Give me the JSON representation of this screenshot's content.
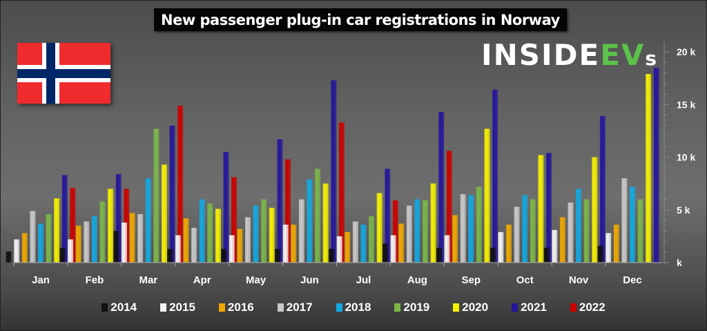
{
  "chart_data": {
    "type": "bar",
    "title": "New passenger plug-in car registrations in Norway",
    "xlabel": "",
    "ylabel": "",
    "ylim": [
      0,
      20000
    ],
    "yticks": [
      0,
      5000,
      10000,
      15000,
      20000
    ],
    "ytick_labels": [
      "k",
      "5 k",
      "10 k",
      "15 k",
      "20 k"
    ],
    "grid": false,
    "legend_position": "bottom",
    "categories": [
      "Jan",
      "Feb",
      "Mar",
      "Apr",
      "May",
      "Jun",
      "Jul",
      "Aug",
      "Sep",
      "Oct",
      "Nov",
      "Dec"
    ],
    "series": [
      {
        "name": "2014",
        "color": "#111111",
        "values": [
          1050,
          1400,
          3000,
          1300,
          1300,
          1300,
          1300,
          1800,
          1400,
          1400,
          1400,
          1600
        ]
      },
      {
        "name": "2015",
        "color": "#f2f2f2",
        "values": [
          2200,
          2200,
          3800,
          2600,
          2600,
          3600,
          2500,
          2600,
          2600,
          2900,
          3100,
          2800
        ]
      },
      {
        "name": "2016",
        "color": "#f0a800",
        "values": [
          2800,
          3500,
          4700,
          4200,
          3200,
          3600,
          2900,
          3700,
          4500,
          3600,
          4300,
          3600
        ]
      },
      {
        "name": "2017",
        "color": "#c8c8c8",
        "values": [
          4900,
          3900,
          4600,
          3300,
          4300,
          6000,
          3900,
          5400,
          6500,
          5300,
          5700,
          8000
        ]
      },
      {
        "name": "2018",
        "color": "#12a8e0",
        "values": [
          3700,
          4400,
          8000,
          6000,
          5400,
          7900,
          3600,
          6000,
          6400,
          6400,
          7000,
          7200
        ]
      },
      {
        "name": "2019",
        "color": "#7ab648",
        "values": [
          4600,
          5800,
          12700,
          5600,
          6000,
          8900,
          4400,
          5900,
          7200,
          6000,
          6000,
          6000
        ]
      },
      {
        "name": "2020",
        "color": "#f5f000",
        "values": [
          6100,
          7000,
          9300,
          5100,
          5200,
          7500,
          6600,
          7500,
          12700,
          10200,
          10000,
          17900
        ]
      },
      {
        "name": "2021",
        "color": "#25179a",
        "values": [
          8300,
          8400,
          13000,
          10500,
          11700,
          17300,
          8900,
          14300,
          16400,
          10400,
          13900,
          18500
        ]
      },
      {
        "name": "2022",
        "color": "#cc0000",
        "values": [
          7100,
          7000,
          14900,
          8100,
          9800,
          13300,
          5900,
          10600,
          null,
          null,
          null,
          null
        ]
      }
    ]
  },
  "branding": {
    "logo_main": "INSIDE",
    "logo_accent": "EV",
    "logo_suffix": "s",
    "flag": "norway-flag"
  }
}
